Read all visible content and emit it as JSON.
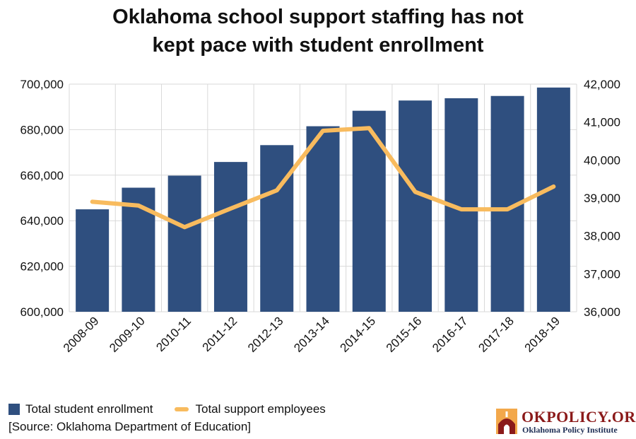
{
  "title_line1": "Oklahoma school support staffing has not",
  "title_line2": "kept pace with student enrollment",
  "source": "[Source: Oklahoma Department of Education]",
  "logo": {
    "name": "OKPOLICY.ORG",
    "subtitle": "Oklahoma Policy Institute"
  },
  "colors": {
    "bar": "#2f4f7f",
    "line": "#f8bb5e",
    "grid": "#d9d9d9",
    "logo_red": "#8b1a1a",
    "logo_orange": "#f3a84b"
  },
  "chart_data": {
    "type": "bar",
    "categories": [
      "2008-09",
      "2009-10",
      "2010-11",
      "2011-12",
      "2012-13",
      "2013-14",
      "2014-15",
      "2015-16",
      "2016-17",
      "2017-18",
      "2018-19"
    ],
    "series": [
      {
        "name": "Total student enrollment",
        "type": "bar",
        "axis": "left",
        "values": [
          645000,
          654500,
          659800,
          665800,
          673200,
          681500,
          688300,
          692800,
          693800,
          694800,
          698500
        ]
      },
      {
        "name": "Total support employees",
        "type": "line",
        "axis": "right",
        "values": [
          38900,
          38800,
          38230,
          38720,
          39200,
          40770,
          40840,
          39160,
          38700,
          38700,
          39300
        ]
      }
    ],
    "ylim_left": [
      600000,
      700000
    ],
    "yticks_left": [
      "600,000",
      "620,000",
      "640,000",
      "660,000",
      "680,000",
      "700,000"
    ],
    "ylim_right": [
      36000,
      42000
    ],
    "yticks_right": [
      "36,000",
      "37,000",
      "38,000",
      "39,000",
      "40,000",
      "41,000",
      "42,000"
    ],
    "grid": true,
    "legend_position": "bottom-left"
  }
}
